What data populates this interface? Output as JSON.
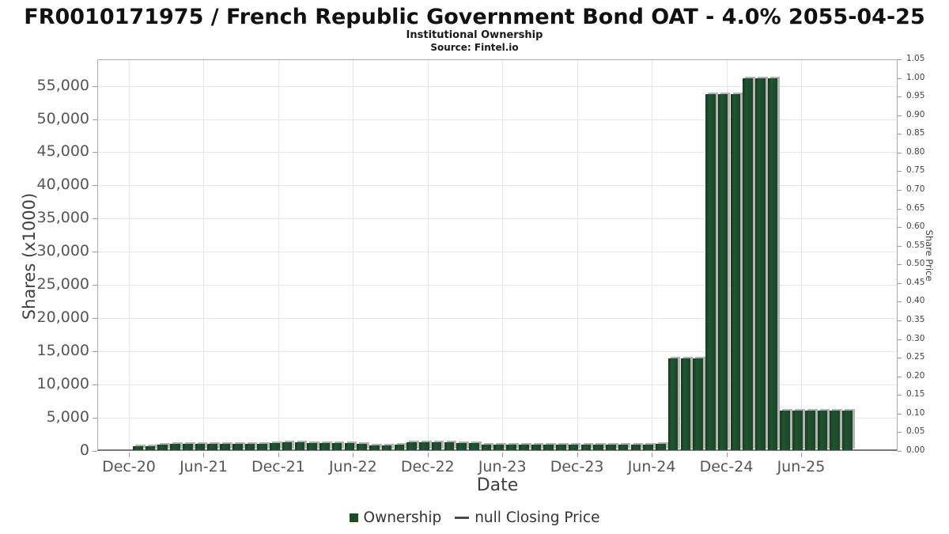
{
  "header": {
    "title": "FR0010171975 / French Republic Government Bond OAT - 4.0% 2055-04-25",
    "subtitle": "Institutional Ownership",
    "source": "Source: Fintel.io"
  },
  "axes": {
    "y_left": {
      "title": "Shares (x1000)",
      "ticks": [
        "0",
        "5,000",
        "10,000",
        "15,000",
        "20,000",
        "25,000",
        "30,000",
        "35,000",
        "40,000",
        "45,000",
        "50,000",
        "55,000"
      ]
    },
    "y_right": {
      "title": "Share Price",
      "ticks": [
        "0.00",
        "0.05",
        "0.10",
        "0.15",
        "0.20",
        "0.25",
        "0.30",
        "0.35",
        "0.40",
        "0.45",
        "0.50",
        "0.55",
        "0.60",
        "0.65",
        "0.70",
        "0.75",
        "0.80",
        "0.85",
        "0.90",
        "0.95",
        "1.00",
        "1.05"
      ]
    },
    "x": {
      "title": "Date",
      "ticks": [
        "Dec-20",
        "Jun-21",
        "Dec-21",
        "Jun-22",
        "Dec-22",
        "Jun-23",
        "Dec-23",
        "Jun-24",
        "Dec-24",
        "Jun-25"
      ]
    }
  },
  "legend": {
    "ownership_label": "Ownership",
    "price_label": "null Closing Price"
  },
  "colors": {
    "bar": "#1d4a27",
    "bar_shadow": "#b3b3b3",
    "grid": "#e6e6e6",
    "axis_border": "#acacac",
    "tick_text": "#555555"
  },
  "chart_data": {
    "type": "bar",
    "title": "FR0010171975 / French Republic Government Bond OAT - 4.0% 2055-04-25",
    "subtitle": "Institutional Ownership",
    "source": "Source: Fintel.io",
    "xlabel": "Date",
    "ylabel": "Shares (x1000)",
    "ylabel_right": "Share Price",
    "ylim": [
      0,
      59000
    ],
    "y2lim": [
      0,
      1.05
    ],
    "y_tick_step": 5000,
    "grid": true,
    "legend_position": "bottom-center",
    "legend": [
      "Ownership",
      "null Closing Price"
    ],
    "x": [
      "Dec-20",
      "Jan-21",
      "Feb-21",
      "Mar-21",
      "Apr-21",
      "May-21",
      "Jun-21",
      "Jul-21",
      "Aug-21",
      "Sep-21",
      "Oct-21",
      "Nov-21",
      "Dec-21",
      "Jan-22",
      "Feb-22",
      "Mar-22",
      "Apr-22",
      "May-22",
      "Jun-22",
      "Jul-22",
      "Aug-22",
      "Sep-22",
      "Oct-22",
      "Nov-22",
      "Dec-22",
      "Jan-23",
      "Feb-23",
      "Mar-23",
      "Apr-23",
      "May-23",
      "Jun-23",
      "Jul-23",
      "Aug-23",
      "Sep-23",
      "Oct-23",
      "Nov-23",
      "Dec-23",
      "Jan-24",
      "Feb-24",
      "Mar-24",
      "Apr-24",
      "May-24",
      "Jun-24",
      "Jul-24",
      "Aug-24",
      "Sep-24",
      "Oct-24",
      "Nov-24",
      "Dec-24",
      "Jan-25",
      "Feb-25",
      "Mar-25",
      "Apr-25",
      "May-25",
      "Jun-25",
      "Jul-25",
      "Aug-25",
      "Sep-25"
    ],
    "values": [
      700,
      750,
      1000,
      1050,
      1050,
      1100,
      1100,
      1050,
      1050,
      1050,
      1100,
      1150,
      1300,
      1300,
      1250,
      1200,
      1150,
      1200,
      1100,
      850,
      850,
      900,
      1300,
      1300,
      1300,
      1300,
      1250,
      1250,
      1000,
      950,
      950,
      1000,
      1000,
      1000,
      950,
      950,
      950,
      1000,
      1000,
      950,
      950,
      1000,
      1050,
      14000,
      14000,
      14000,
      53700,
      53700,
      53700,
      56100,
      56100,
      56100,
      6100,
      6100,
      6100,
      6100,
      6100,
      6100
    ],
    "x_tick_labels": [
      "Dec-20",
      "Jun-21",
      "Dec-21",
      "Jun-22",
      "Dec-22",
      "Jun-23",
      "Dec-23",
      "Jun-24",
      "Dec-24",
      "Jun-25"
    ],
    "series_note": "values are Shares x1000; no closing price data plotted (null)"
  }
}
